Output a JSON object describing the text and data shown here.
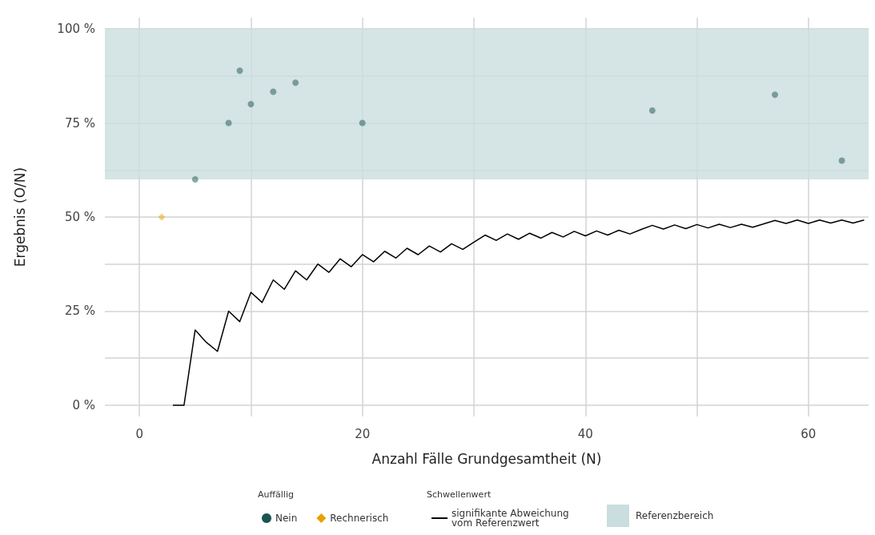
{
  "chart_data": {
    "type": "scatter",
    "xlabel": "Anzahl Fälle Grundgesamtheit (N)",
    "ylabel": "Ergebnis (O/N)",
    "legend_title": [
      "Auffällig",
      "Schwellenwert"
    ],
    "xlim": [
      -3.1,
      65.4
    ],
    "ylim": [
      -3,
      103
    ],
    "xticks": [
      0,
      {
        "value": 10,
        "label": null
      },
      20,
      {
        "value": 30,
        "label": null
      },
      40,
      {
        "value": 50,
        "label": null
      },
      60
    ],
    "yticks": [
      {
        "value": 0,
        "label": "0 %"
      },
      {
        "value": 12.5,
        "label": null
      },
      {
        "value": 25,
        "label": "25 %"
      },
      {
        "value": 37.5,
        "label": null
      },
      {
        "value": 50,
        "label": "50 %"
      },
      {
        "value": 62.5,
        "label": null
      },
      {
        "value": 75,
        "label": "75 %"
      },
      {
        "value": 87.5,
        "label": null
      },
      {
        "value": 100,
        "label": "100 %"
      }
    ],
    "grid": true,
    "legend": "bottom",
    "bands": [
      {
        "axis": "y",
        "from": 60,
        "to": 100,
        "label": "Referenzbereich",
        "color": "#cadddf"
      }
    ],
    "series": [
      {
        "name": "Nein",
        "marker": "circle",
        "color": "#1b5450",
        "x": [
          5,
          8,
          9,
          10,
          12,
          14,
          20,
          46,
          57,
          63
        ],
        "values": [
          60,
          75,
          88.9,
          80,
          83.3,
          85.7,
          75,
          78.3,
          82.5,
          65
        ]
      },
      {
        "name": "Rechnerisch",
        "marker": "diamond",
        "color": "#e8a000",
        "x": [
          2
        ],
        "values": [
          50
        ]
      },
      {
        "name": "signifikante Abweichung vom Referenzwert",
        "type": "line",
        "marker": "none",
        "line_style": "solid",
        "color": "#000000",
        "x": [
          3,
          4,
          5,
          6,
          7,
          8,
          9,
          10,
          11,
          12,
          13,
          14,
          15,
          16,
          17,
          18,
          19,
          20,
          21,
          22,
          23,
          24,
          25,
          26,
          27,
          28,
          29,
          30,
          31,
          32,
          33,
          34,
          35,
          36,
          37,
          38,
          39,
          40,
          41,
          42,
          43,
          44,
          45,
          46,
          47,
          48,
          49,
          50,
          51,
          52,
          53,
          54,
          55,
          56,
          57,
          58,
          59,
          60,
          61,
          62,
          63,
          64,
          65
        ],
        "values": [
          0,
          0,
          20,
          16.7,
          14.3,
          25,
          22.2,
          30,
          27.3,
          33.3,
          30.8,
          35.7,
          33.3,
          37.5,
          35.3,
          38.9,
          36.8,
          40,
          38.1,
          40.9,
          39.1,
          41.7,
          40,
          42.3,
          40.7,
          42.9,
          41.4,
          43.3,
          45.2,
          43.8,
          45.5,
          44.1,
          45.7,
          44.4,
          45.9,
          44.7,
          46.2,
          45,
          46.3,
          45.2,
          46.5,
          45.5,
          46.7,
          47.8,
          46.8,
          47.9,
          46.9,
          48,
          47.1,
          48.1,
          47.2,
          48.1,
          47.3,
          48.2,
          49.1,
          48.3,
          49.2,
          48.3,
          49.2,
          48.4,
          49.2,
          48.4,
          49.2
        ]
      }
    ]
  }
}
